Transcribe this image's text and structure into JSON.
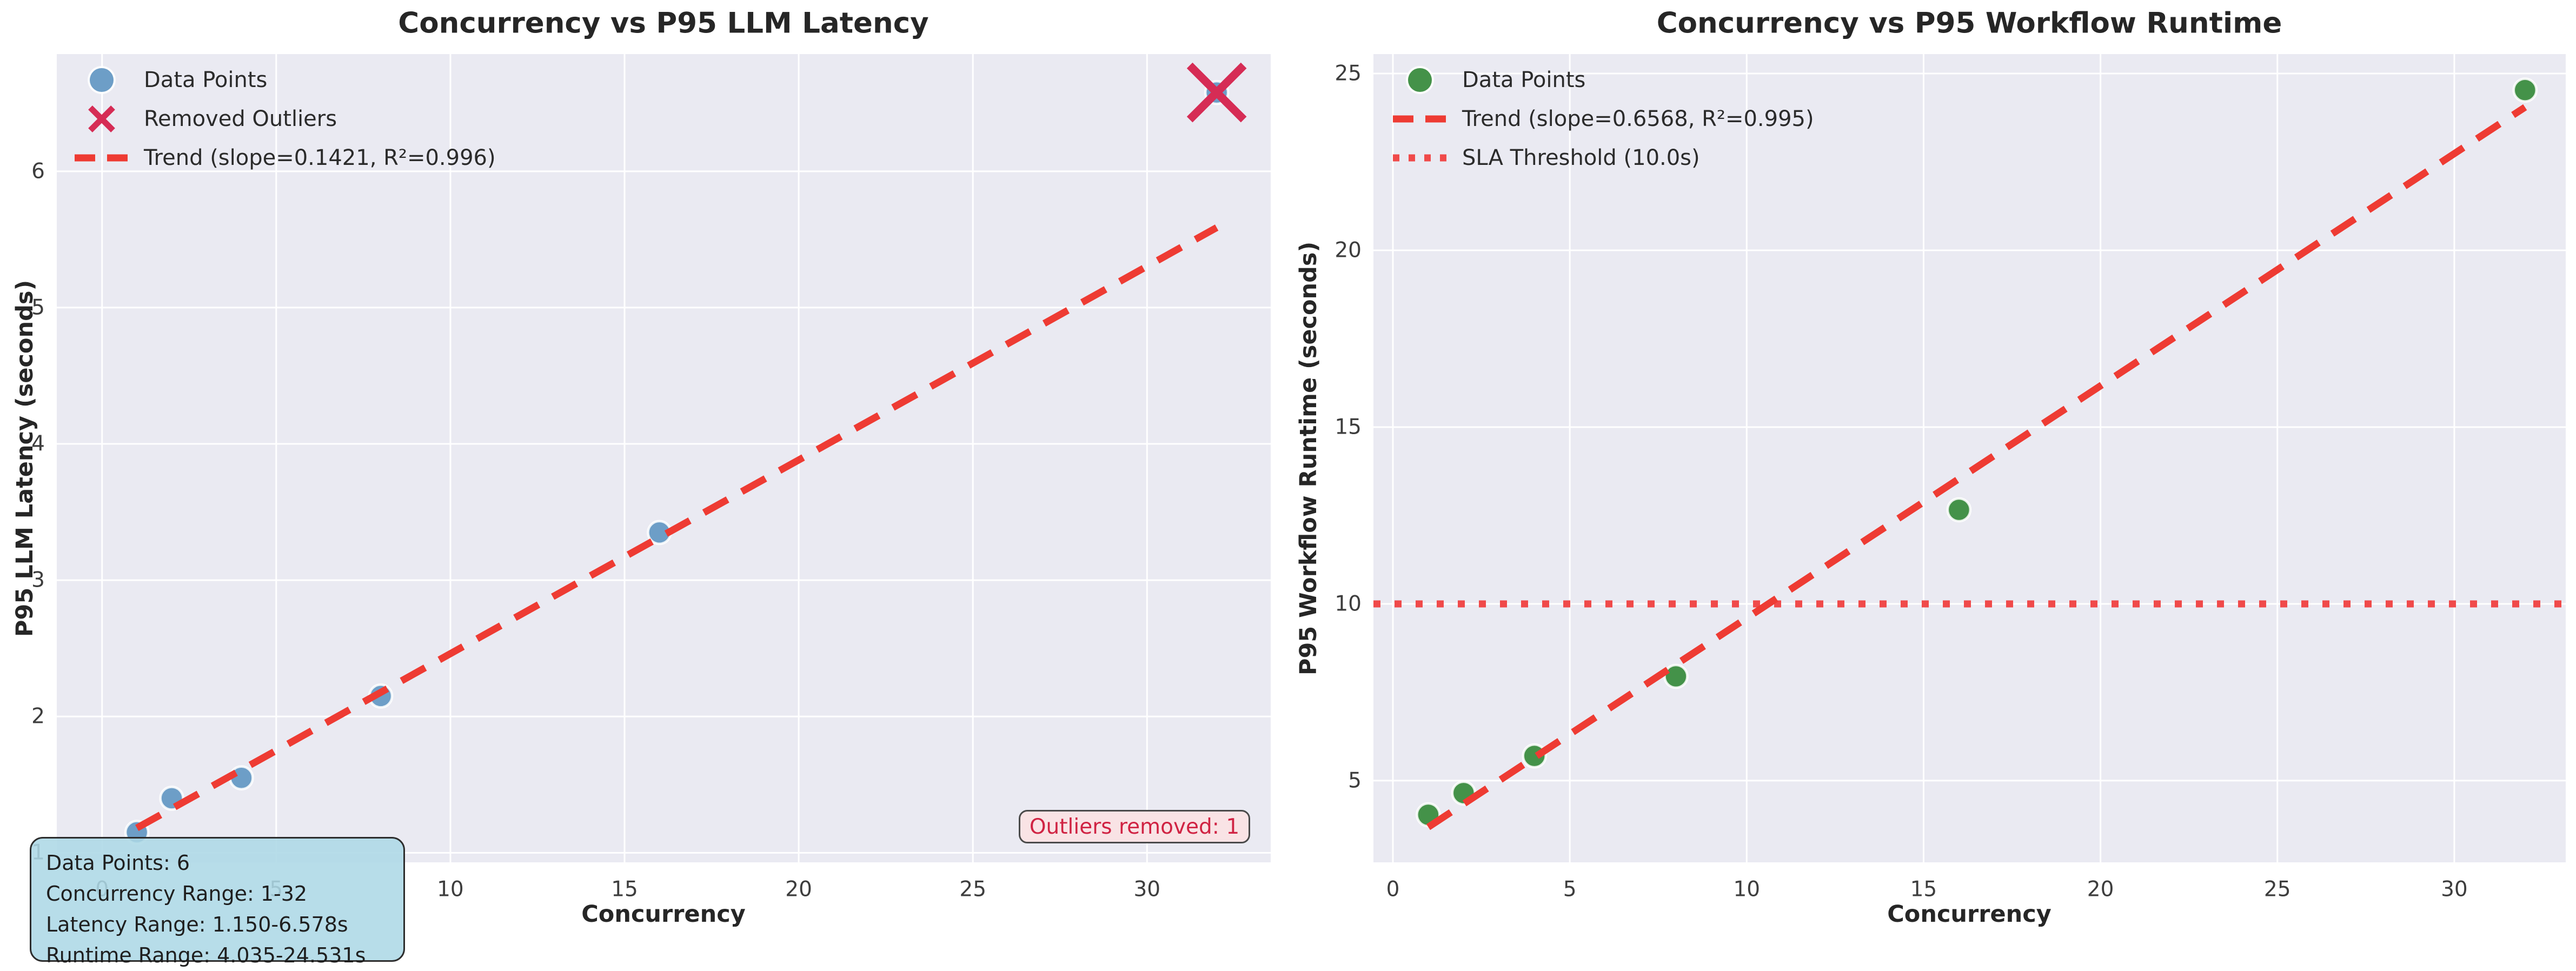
{
  "figure": {
    "background": "#ffffff",
    "plot_background": "#eaeaf2",
    "grid_color": "#ffffff"
  },
  "chart_data": [
    {
      "type": "scatter",
      "title": "Concurrency vs P95 LLM Latency",
      "xlabel": "Concurrency",
      "ylabel": "P95 LLM Latency (seconds)",
      "xlim": [
        -1.3,
        33.55
      ],
      "ylim": [
        0.93,
        6.86
      ],
      "xticks": [
        0,
        5,
        10,
        15,
        20,
        25,
        30
      ],
      "yticks": [
        1,
        2,
        3,
        4,
        5,
        6
      ],
      "grid": true,
      "legend_position": "upper-left",
      "points": {
        "label": "Data Points",
        "color": "#6d9ec7",
        "x": [
          1,
          2,
          4,
          8,
          16
        ],
        "y": [
          1.15,
          1.4,
          1.55,
          2.15,
          3.35
        ]
      },
      "removed_outliers": {
        "label": "Removed Outliers",
        "color": "#d62c55",
        "point_color": "#6d9ec7",
        "x": [
          32
        ],
        "y": [
          6.578
        ]
      },
      "trend": {
        "label": "Trend (slope=0.1421, R²=0.996)",
        "slope": 0.1421,
        "intercept": 1.04,
        "r2": 0.996,
        "x_start": 1,
        "x_end": 32,
        "style": "dashed",
        "color": "#ee3b33"
      },
      "legend": [
        {
          "label": "Data Points",
          "marker": "circle",
          "color": "#6d9ec7"
        },
        {
          "label": "Removed Outliers",
          "marker": "x",
          "color": "#d62c55"
        },
        {
          "label": "Trend (slope=0.1421, R²=0.996)",
          "marker": "dashed-line",
          "color": "#ee3b33"
        }
      ],
      "annotation_box": {
        "bg": "#add8e6",
        "border": "#2d2d2d",
        "lines": [
          "Data Points: 6",
          "Concurrency Range: 1-32",
          "Latency Range: 1.150-6.578s",
          "Runtime Range: 4.035-24.531s"
        ]
      },
      "badge": {
        "text": "Outliers removed: 1",
        "color": "#d02343",
        "bg": "#f9e3e5",
        "border": "#4a4a4a"
      }
    },
    {
      "type": "scatter",
      "title": "Concurrency vs P95 Workflow Runtime",
      "xlabel": "Concurrency",
      "ylabel": "P95 Workflow Runtime (seconds)",
      "xlim": [
        -0.55,
        33.15
      ],
      "ylim": [
        2.69,
        25.55
      ],
      "xticks": [
        0,
        5,
        10,
        15,
        20,
        25,
        30
      ],
      "yticks": [
        5,
        10,
        15,
        20,
        25
      ],
      "grid": true,
      "legend_position": "upper-left",
      "points": {
        "label": "Data Points",
        "color": "#449249",
        "x": [
          1,
          2,
          4,
          8,
          16,
          32
        ],
        "y": [
          4.035,
          4.65,
          5.7,
          7.95,
          12.66,
          24.531
        ]
      },
      "trend": {
        "label": "Trend (slope=0.6568, R²=0.995)",
        "slope": 0.6568,
        "intercept": 3.03,
        "r2": 0.995,
        "x_start": 1,
        "x_end": 32,
        "style": "dashed",
        "color": "#ee3b33"
      },
      "sla": {
        "label": "SLA Threshold (10.0s)",
        "value": 10.0,
        "style": "dotted",
        "color": "#f04a4a"
      },
      "legend": [
        {
          "label": "Data Points",
          "marker": "circle",
          "color": "#449249"
        },
        {
          "label": "Trend (slope=0.6568, R²=0.995)",
          "marker": "dashed-line",
          "color": "#ee3b33"
        },
        {
          "label": "SLA Threshold (10.0s)",
          "marker": "dotted-line",
          "color": "#f04a4a"
        }
      ]
    }
  ]
}
